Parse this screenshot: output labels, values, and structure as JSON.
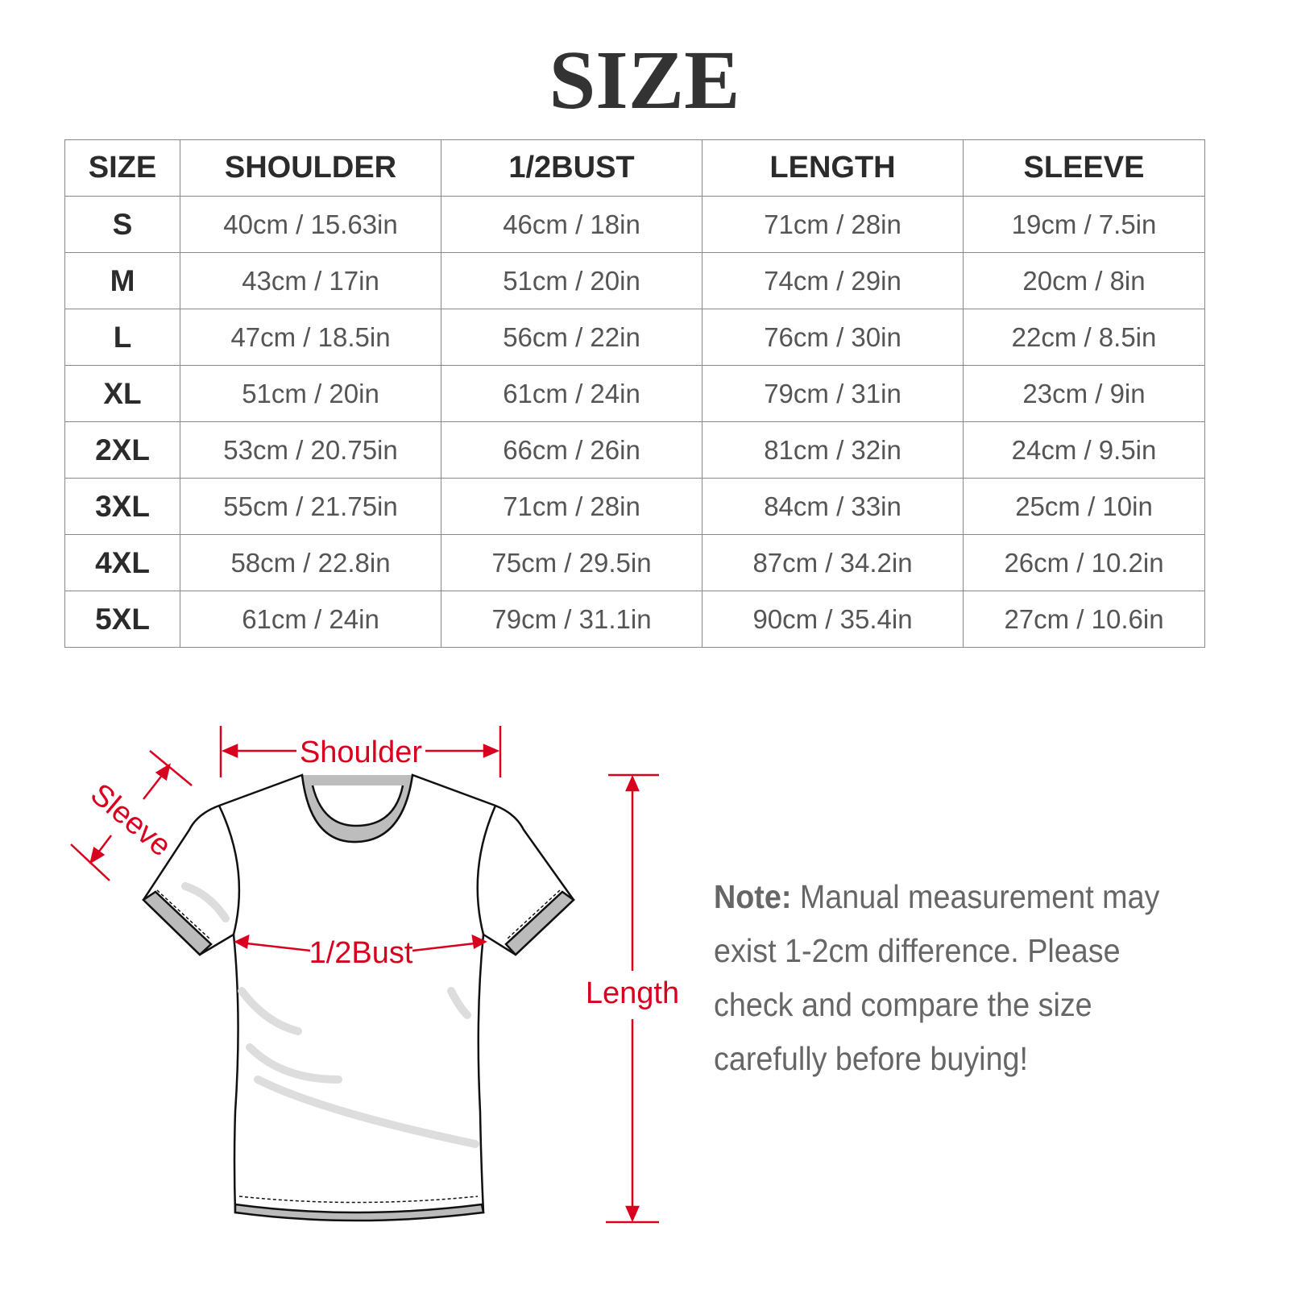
{
  "title": "SIZE",
  "table": {
    "headers": [
      "SIZE",
      "SHOULDER",
      "1/2BUST",
      "LENGTH",
      "SLEEVE"
    ],
    "rows": [
      [
        "S",
        "40cm / 15.63in",
        "46cm / 18in",
        "71cm / 28in",
        "19cm / 7.5in"
      ],
      [
        "M",
        "43cm / 17in",
        "51cm / 20in",
        "74cm / 29in",
        "20cm / 8in"
      ],
      [
        "L",
        "47cm / 18.5in",
        "56cm / 22in",
        "76cm / 30in",
        "22cm / 8.5in"
      ],
      [
        "XL",
        "51cm / 20in",
        "61cm / 24in",
        "79cm / 31in",
        "23cm / 9in"
      ],
      [
        "2XL",
        "53cm / 20.75in",
        "66cm / 26in",
        "81cm / 32in",
        "24cm / 9.5in"
      ],
      [
        "3XL",
        "55cm / 21.75in",
        "71cm / 28in",
        "84cm / 33in",
        "25cm / 10in"
      ],
      [
        "4XL",
        "58cm / 22.8in",
        "75cm / 29.5in",
        "87cm / 34.2in",
        "26cm / 10.2in"
      ],
      [
        "5XL",
        "61cm / 24in",
        "79cm / 31.1in",
        "90cm / 35.4in",
        "27cm / 10.6in"
      ]
    ]
  },
  "diagram": {
    "shoulder_label": "Shoulder",
    "sleeve_label": "Sleeve",
    "bust_label": "1/2Bust",
    "length_label": "Length",
    "accent_color": "#d8001e"
  },
  "note": {
    "label": "Note:",
    "text": " Manual measurement may exist 1-2cm difference. Please check and compare the size carefully before buying!"
  }
}
